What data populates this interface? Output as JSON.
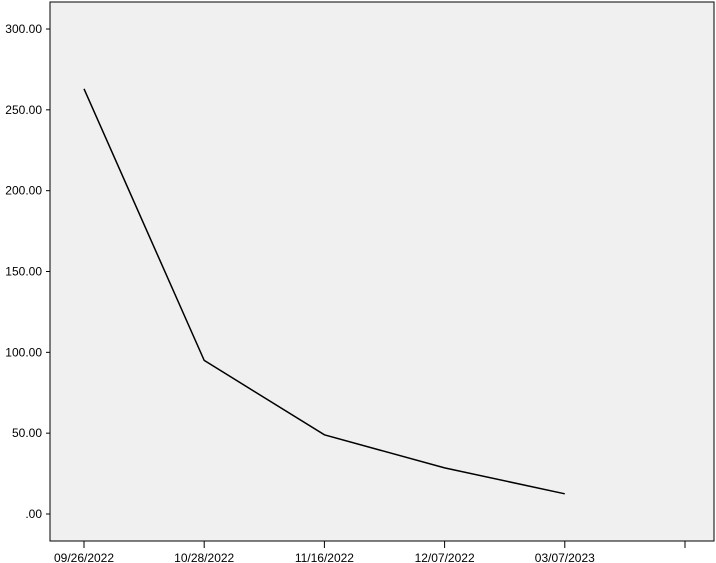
{
  "chart_data": {
    "type": "line",
    "title": "",
    "xlabel": "",
    "ylabel": "",
    "categories": [
      "09/26/2022",
      "10/28/2022",
      "11/16/2022",
      "12/07/2022",
      "03/07/2023",
      ""
    ],
    "series": [
      {
        "values": [
          263,
          95,
          49,
          28.5,
          12.5,
          null
        ]
      }
    ],
    "ylim": [
      0,
      300
    ],
    "yticks": [
      0,
      50,
      100,
      150,
      200,
      250,
      300
    ],
    "ytick_labels": [
      ".00",
      "50.00",
      "100.00",
      "150.00",
      "200.00",
      "250.00",
      "300.00"
    ],
    "grid": false,
    "legend": "none",
    "colors": {
      "plot_background": "#f0f0f0",
      "line": "#000000",
      "axis": "#000000"
    }
  }
}
